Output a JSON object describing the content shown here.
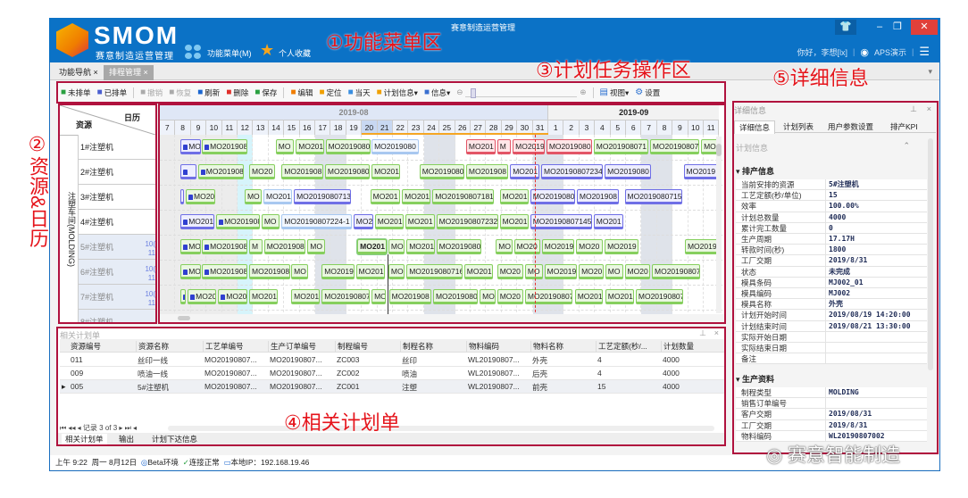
{
  "app": {
    "title": "赛意制造运营管理",
    "logo_text": "SMOM",
    "logo_sub": "赛意制造运营管理",
    "menu_label": "功能菜单(M)",
    "favorites_label": "个人收藏",
    "greeting": "你好，李想[lx]",
    "env_label": "APS演示"
  },
  "tabs": [
    {
      "label": "功能导航",
      "active": false
    },
    {
      "label": "排程管理",
      "active": true
    }
  ],
  "toolbar": {
    "items": [
      {
        "label": "未排单",
        "icon": "clipboard-icon",
        "color": "#2aa040",
        "enabled": true
      },
      {
        "label": "已排单",
        "icon": "clipboard-check-icon",
        "color": "#4a5fd0",
        "enabled": true
      },
      {
        "sep": true
      },
      {
        "label": "撤销",
        "icon": "undo-icon",
        "color": "#aaa",
        "enabled": false
      },
      {
        "label": "恢复",
        "icon": "redo-icon",
        "color": "#aaa",
        "enabled": false
      },
      {
        "label": "刷新",
        "icon": "refresh-icon",
        "color": "#1a66d0",
        "enabled": true
      },
      {
        "label": "删除",
        "icon": "delete-icon",
        "color": "#e0302a",
        "enabled": true
      },
      {
        "label": "保存",
        "icon": "save-icon",
        "color": "#2aa040",
        "enabled": true
      },
      {
        "sep": true
      },
      {
        "label": "编辑",
        "icon": "move-icon",
        "color": "#f07d00",
        "enabled": true
      },
      {
        "label": "定位",
        "icon": "location-icon",
        "color": "#f0a000",
        "enabled": true
      },
      {
        "label": "当天",
        "icon": "calendar-icon",
        "color": "#3a8ee0",
        "enabled": true
      },
      {
        "label": "计划信息▾",
        "icon": "plan-icon",
        "color": "#f0a000",
        "enabled": true
      },
      {
        "label": "信息▾",
        "icon": "info-icon",
        "color": "#3a6fd0",
        "enabled": true
      }
    ],
    "zoom_level": 0.05,
    "view_label": "视图▾",
    "settings_label": "设置"
  },
  "annotations": {
    "a1": "①功能菜单区",
    "a2": "②资源&日历",
    "a3": "③计划任务操作区",
    "a4": "④相关计划单",
    "a5": "⑤详细信息"
  },
  "resources": {
    "header_resource": "资源",
    "header_calendar": "日历",
    "group": "注塑车间(MOLDING)",
    "rows": [
      {
        "name": "1#注塑机"
      },
      {
        "name": "2#注塑机"
      },
      {
        "name": "3#注塑机"
      },
      {
        "name": "4#注塑机"
      },
      {
        "name": "5#注塑机",
        "cal1": "10(",
        "cal2": "11",
        "dim": true
      },
      {
        "name": "6#注塑机",
        "cal1": "10(",
        "cal2": "11",
        "dim": true
      },
      {
        "name": "7#注塑机",
        "cal1": "10(",
        "cal2": "11",
        "dim": true
      },
      {
        "name": "8#注塑机",
        "dim": true
      }
    ]
  },
  "gantt": {
    "months": [
      {
        "label": "2019-08"
      },
      {
        "label": "2019-09"
      }
    ],
    "days": [
      "7",
      "8",
      "9",
      "10",
      "11",
      "12",
      "13",
      "14",
      "15",
      "16",
      "17",
      "18",
      "19",
      "20",
      "21",
      "22",
      "23",
      "24",
      "25",
      "26",
      "27",
      "28",
      "29",
      "30",
      "31",
      "1",
      "2",
      "3",
      "4",
      "5",
      "6",
      "7",
      "8",
      "9",
      "10",
      "11"
    ],
    "today": "08-12",
    "shaded_days": [
      "08-07",
      "08-08",
      "08-09",
      "08-10",
      "08-11",
      "08-17",
      "08-18",
      "08-24",
      "08-25",
      "08-31",
      "09-01",
      "09-07",
      "09-08"
    ],
    "marker": "08-31 03",
    "colors": {
      "g": [
        "#eaf7e1",
        "#86cf5e"
      ],
      "b": [
        "#eeeeff",
        "#6f6fe6"
      ],
      "r": [
        "#ffe6e8",
        "#e35566"
      ],
      "l": [
        "#f2f7ff",
        "#a8c8f0"
      ]
    },
    "rows": [
      [
        {
          "t": "MO",
          "s": "08-08 08",
          "e": "08-09 17",
          "c": "b",
          "lock": true
        },
        {
          "t": "MO201908",
          "s": "08-09 17",
          "e": "08-12 17",
          "c": "g",
          "lock": true
        },
        {
          "t": "MO",
          "s": "08-14 11",
          "e": "08-15 16",
          "c": "g"
        },
        {
          "t": "MO201",
          "s": "08-15 18",
          "e": "08-17 15",
          "c": "g"
        },
        {
          "t": "MO2019080",
          "s": "08-17 16",
          "e": "08-20 15",
          "c": "g"
        },
        {
          "t": "MO2019080",
          "s": "08-20 15",
          "e": "08-23 17",
          "c": "l"
        },
        {
          "t": "MO201",
          "s": "08-26 17",
          "e": "08-28 16",
          "c": "r"
        },
        {
          "t": "M",
          "s": "08-28 17",
          "e": "08-29 15",
          "c": "r"
        },
        {
          "t": "MO2019",
          "s": "08-29 17",
          "e": "08-31 20",
          "c": "r"
        },
        {
          "t": "MO2019080",
          "s": "08-31 21",
          "e": "09-03 21",
          "c": "r"
        },
        {
          "t": "MO201908071",
          "s": "09-03 22",
          "e": "09-07 12",
          "c": "g"
        },
        {
          "t": "MO20190807",
          "s": "09-07 13",
          "e": "09-10 18",
          "c": "g"
        },
        {
          "t": "MO",
          "s": "09-10 20",
          "e": "09-12 00",
          "c": "g"
        }
      ],
      [
        {
          "t": "",
          "s": "08-08 08",
          "e": "08-09 10",
          "c": "b",
          "lock": true
        },
        {
          "t": "MO201908",
          "s": "08-09 11",
          "e": "08-12 11",
          "c": "g",
          "lock": true
        },
        {
          "t": "MO20",
          "s": "08-12 18",
          "e": "08-14 11",
          "c": "g"
        },
        {
          "t": "MO201908",
          "s": "08-14 20",
          "e": "08-17 14",
          "c": "g"
        },
        {
          "t": "MO2019080",
          "s": "08-17 15",
          "e": "08-20 13",
          "c": "g"
        },
        {
          "t": "MO201",
          "s": "08-20 15",
          "e": "08-22 12",
          "c": "g"
        },
        {
          "t": "MO2019080",
          "s": "08-23 17",
          "e": "08-26 16",
          "c": "g"
        },
        {
          "t": "MO201908",
          "s": "08-26 17",
          "e": "08-29 11",
          "c": "g"
        },
        {
          "t": "MO201",
          "s": "08-29 13",
          "e": "08-31 11",
          "c": "b"
        },
        {
          "t": "MO20190807234",
          "s": "08-31 13",
          "e": "09-04 13",
          "c": "b"
        },
        {
          "t": "MO2019080",
          "s": "09-04 15",
          "e": "09-07 16",
          "c": "b"
        },
        {
          "t": "MO2019",
          "s": "09-09 17",
          "e": "09-12 00",
          "c": "b"
        }
      ],
      [
        {
          "t": "",
          "s": "08-08 08",
          "e": "08-08 15",
          "c": "b",
          "lock": true
        },
        {
          "t": "MO20",
          "s": "08-08 16",
          "e": "08-10 15",
          "c": "g",
          "lock": true
        },
        {
          "t": "MO",
          "s": "08-12 11",
          "e": "08-13 15",
          "c": "g"
        },
        {
          "t": "MO201",
          "s": "08-13 16",
          "e": "08-15 13",
          "c": "l"
        },
        {
          "t": "MO2019080713",
          "s": "08-15 15",
          "e": "08-19 08",
          "c": "b"
        },
        {
          "t": "MO201",
          "s": "08-20 13",
          "e": "08-22 12",
          "c": "g"
        },
        {
          "t": "MO201",
          "s": "08-22 14",
          "e": "08-24 11",
          "c": "g"
        },
        {
          "t": "MO20190807181",
          "s": "08-24 13",
          "e": "08-28 13",
          "c": "g"
        },
        {
          "t": "MO201",
          "s": "08-28 21",
          "e": "08-30 19",
          "c": "g"
        },
        {
          "t": "MO2019080",
          "s": "08-30 20",
          "e": "09-02 19",
          "c": "b"
        },
        {
          "t": "MO201908",
          "s": "09-02 20",
          "e": "09-05 14",
          "c": "b"
        },
        {
          "t": "MO2019080715",
          "s": "09-05 22",
          "e": "09-09 16",
          "c": "b"
        }
      ],
      [
        {
          "t": "MO201",
          "s": "08-08 08",
          "e": "08-10 13",
          "c": "b",
          "lock": true
        },
        {
          "t": "MO201908",
          "s": "08-10 15",
          "e": "08-13 12",
          "c": "g",
          "lock": true
        },
        {
          "t": "MO",
          "s": "08-13 13",
          "e": "08-14 18",
          "c": "g"
        },
        {
          "t": "MO20190807224-1",
          "s": "08-14 20",
          "e": "08-19 10",
          "c": "l"
        },
        {
          "t": "MO2",
          "s": "08-19 11",
          "e": "08-20 19",
          "c": "b"
        },
        {
          "t": "MO201",
          "s": "08-20 20",
          "e": "08-22 18",
          "c": "g"
        },
        {
          "t": "MO201",
          "s": "08-22 19",
          "e": "08-24 18",
          "c": "g"
        },
        {
          "t": "MO20190807232",
          "s": "08-24 19",
          "e": "08-28 20",
          "c": "g"
        },
        {
          "t": "MO201",
          "s": "08-28 21",
          "e": "08-30 19",
          "c": "g"
        },
        {
          "t": "MO20190807145",
          "s": "08-30 20",
          "e": "09-03 21",
          "c": "b"
        },
        {
          "t": "MO201",
          "s": "09-03 22",
          "e": "09-05 21",
          "c": "b"
        }
      ],
      [
        {
          "t": "MO",
          "s": "08-08 08",
          "e": "08-09 17",
          "c": "g",
          "lock": true
        },
        {
          "t": "MO201908",
          "s": "08-09 17",
          "e": "08-12 17",
          "c": "g",
          "lock": true
        },
        {
          "t": "M",
          "s": "08-12 18",
          "e": "08-13 16",
          "c": "g"
        },
        {
          "t": "MO201908",
          "s": "08-13 17",
          "e": "08-16 10",
          "c": "g"
        },
        {
          "t": "MO",
          "s": "08-16 12",
          "e": "08-17 16",
          "c": "g"
        },
        {
          "t": "MO201",
          "s": "08-19 17",
          "e": "08-21 16",
          "c": "g",
          "sel": true
        },
        {
          "t": "MO",
          "s": "08-21 17",
          "e": "08-22 19",
          "c": "g"
        },
        {
          "t": "MO201",
          "s": "08-22 21",
          "e": "08-24 18",
          "c": "g"
        },
        {
          "t": "MO2019080",
          "s": "08-24 19",
          "e": "08-27 18",
          "c": "g"
        },
        {
          "t": "MO",
          "s": "08-28 15",
          "e": "08-29 18",
          "c": "g"
        },
        {
          "t": "MO20",
          "s": "08-29 19",
          "e": "08-31 13",
          "c": "g"
        },
        {
          "t": "MO2019",
          "s": "08-31 14",
          "e": "09-02 17",
          "c": "g"
        },
        {
          "t": "MO20",
          "s": "09-02 19",
          "e": "09-04 13",
          "c": "g"
        },
        {
          "t": "MO2019",
          "s": "09-04 15",
          "e": "09-06 21",
          "c": "g"
        },
        {
          "t": "MO2019",
          "s": "09-09 19",
          "e": "09-12 00",
          "c": "g"
        }
      ],
      [
        {
          "t": "MO",
          "s": "08-08 08",
          "e": "08-09 17",
          "c": "g",
          "lock": true
        },
        {
          "t": "MO201908",
          "s": "08-09 17",
          "e": "08-12 17",
          "c": "g",
          "lock": true
        },
        {
          "t": "MO201908",
          "s": "08-12 18",
          "e": "08-15 11",
          "c": "g"
        },
        {
          "t": "MO",
          "s": "08-15 11",
          "e": "08-16 14",
          "c": "g"
        },
        {
          "t": "MO2019",
          "s": "08-17 10",
          "e": "08-19 14",
          "c": "g"
        },
        {
          "t": "MO201",
          "s": "08-19 15",
          "e": "08-21 13",
          "c": "g"
        },
        {
          "t": "MO",
          "s": "08-21 17",
          "e": "08-22 19",
          "c": "g"
        },
        {
          "t": "MO2019080716",
          "s": "08-22 21",
          "e": "08-26 13",
          "c": "g"
        },
        {
          "t": "MO201",
          "s": "08-26 14",
          "e": "08-28 12",
          "c": "g"
        },
        {
          "t": "MO20",
          "s": "08-28 17",
          "e": "08-30 11",
          "c": "g"
        },
        {
          "t": "MO",
          "s": "08-30 12",
          "e": "08-31 17",
          "c": "g"
        },
        {
          "t": "MO2019",
          "s": "08-31 18",
          "e": "09-02 21",
          "c": "g"
        },
        {
          "t": "MO20",
          "s": "09-02 23",
          "e": "09-04 15",
          "c": "g"
        },
        {
          "t": "MO",
          "s": "09-04 16",
          "e": "09-05 21",
          "c": "g"
        },
        {
          "t": "MO20",
          "s": "09-05 22",
          "e": "09-07 14",
          "c": "g"
        },
        {
          "t": "MO20190807",
          "s": "09-07 16",
          "e": "09-10 20",
          "c": "g"
        }
      ],
      [
        {
          "t": "",
          "s": "08-08 08",
          "e": "08-08 17",
          "c": "g",
          "lock": true
        },
        {
          "t": "MO20",
          "s": "08-08 19",
          "e": "08-10 16",
          "c": "g",
          "lock": true
        },
        {
          "t": "MO20",
          "s": "08-10 18",
          "e": "08-12 17",
          "c": "g",
          "lock": true
        },
        {
          "t": "MO201",
          "s": "08-12 18",
          "e": "08-14 15",
          "c": "g"
        },
        {
          "t": "MO201",
          "s": "08-15 11",
          "e": "08-17 08",
          "c": "g"
        },
        {
          "t": "MO20190807",
          "s": "08-17 10",
          "e": "08-20 13",
          "c": "g"
        },
        {
          "t": "MO",
          "s": "08-20 15",
          "e": "08-21 14",
          "c": "g"
        },
        {
          "t": "MO201908",
          "s": "08-21 18",
          "e": "08-24 13",
          "c": "g"
        },
        {
          "t": "MO2019080",
          "s": "08-24 14",
          "e": "08-27 12",
          "c": "g"
        },
        {
          "t": "MO",
          "s": "08-27 14",
          "e": "08-28 16",
          "c": "g"
        },
        {
          "t": "MO20",
          "s": "08-28 17",
          "e": "08-30 11",
          "c": "g"
        },
        {
          "t": "MO20190807",
          "s": "08-30 12",
          "e": "09-02 14",
          "c": "g"
        },
        {
          "t": "MO201",
          "s": "09-02 17",
          "e": "09-04 13",
          "c": "g"
        },
        {
          "t": "MO201",
          "s": "09-04 16",
          "e": "09-06 14",
          "c": "g"
        },
        {
          "t": "MO20190807",
          "s": "09-06 15",
          "e": "09-09 17",
          "c": "g"
        }
      ]
    ]
  },
  "related": {
    "title": "相关计划单",
    "columns": [
      "资源编号",
      "资源名称",
      "工艺单编号",
      "生产订单编号",
      "制程编号",
      "制程名称",
      "物料编码",
      "物料名称",
      "工艺定额(秒/...",
      "计划数量"
    ],
    "rows": [
      [
        "011",
        "丝印一线",
        "MO20190807...",
        "MO20190807...",
        "ZC003",
        "丝印",
        "WL20190807...",
        "外壳",
        "4",
        "4000"
      ],
      [
        "009",
        "喷油一线",
        "MO20190807...",
        "MO20190807...",
        "ZC002",
        "喷油",
        "WL20190807...",
        "后壳",
        "4",
        "4000"
      ],
      [
        "005",
        "5#注塑机",
        "MO20190807...",
        "MO20190807...",
        "ZC001",
        "注塑",
        "WL20190807...",
        "前壳",
        "15",
        "4000"
      ]
    ],
    "selected_row": 2,
    "record_text": "记录 3 of 3",
    "tabs": [
      {
        "label": "相关计划单",
        "active": true
      },
      {
        "label": "输出"
      },
      {
        "label": "计划下达信息"
      }
    ]
  },
  "detail": {
    "title": "详细信息",
    "tabs": [
      {
        "label": "详细信息",
        "active": true
      },
      {
        "label": "计划列表"
      },
      {
        "label": "用户参数设置"
      },
      {
        "label": "排产KPI"
      }
    ],
    "section": "计划信息",
    "group1": "排产信息",
    "props1": [
      [
        "当前安排的资源",
        "5#注塑机"
      ],
      [
        "工艺定额(秒/单位)",
        "15"
      ],
      [
        "效率",
        "100.00%"
      ],
      [
        "计划总数量",
        "4000"
      ],
      [
        "累计完工数量",
        "0"
      ],
      [
        "生产周期",
        "17.17H"
      ],
      [
        "转款时间(秒)",
        "1800"
      ],
      [
        "工厂交期",
        "2019/8/31"
      ],
      [
        "状态",
        "未完成"
      ],
      [
        "模具条码",
        "MJ002_01"
      ],
      [
        "模具编码",
        "MJ002"
      ],
      [
        "模具名称",
        "外壳"
      ],
      [
        "计划开始时间",
        "2019/08/19 14:20:00"
      ],
      [
        "计划结束时间",
        "2019/08/21 13:30:00"
      ],
      [
        "实际开始日期",
        ""
      ],
      [
        "实际结束日期",
        ""
      ],
      [
        "备注",
        ""
      ]
    ],
    "group2": "生产资料",
    "props2": [
      [
        "制程类型",
        "MOLDING"
      ],
      [
        "销售订单编号",
        ""
      ],
      [
        "客户交期",
        "2019/08/31"
      ],
      [
        "工厂交期",
        "2019/8/31"
      ],
      [
        "物料编码",
        "WL20190807002"
      ]
    ]
  },
  "status": {
    "time": "上午 9:22",
    "date": "周一 8月12日",
    "env": "Beta环境",
    "conn": "连接正常",
    "ip": "本地IP：192.168.19.46"
  },
  "watermark": "赛意智能制造"
}
